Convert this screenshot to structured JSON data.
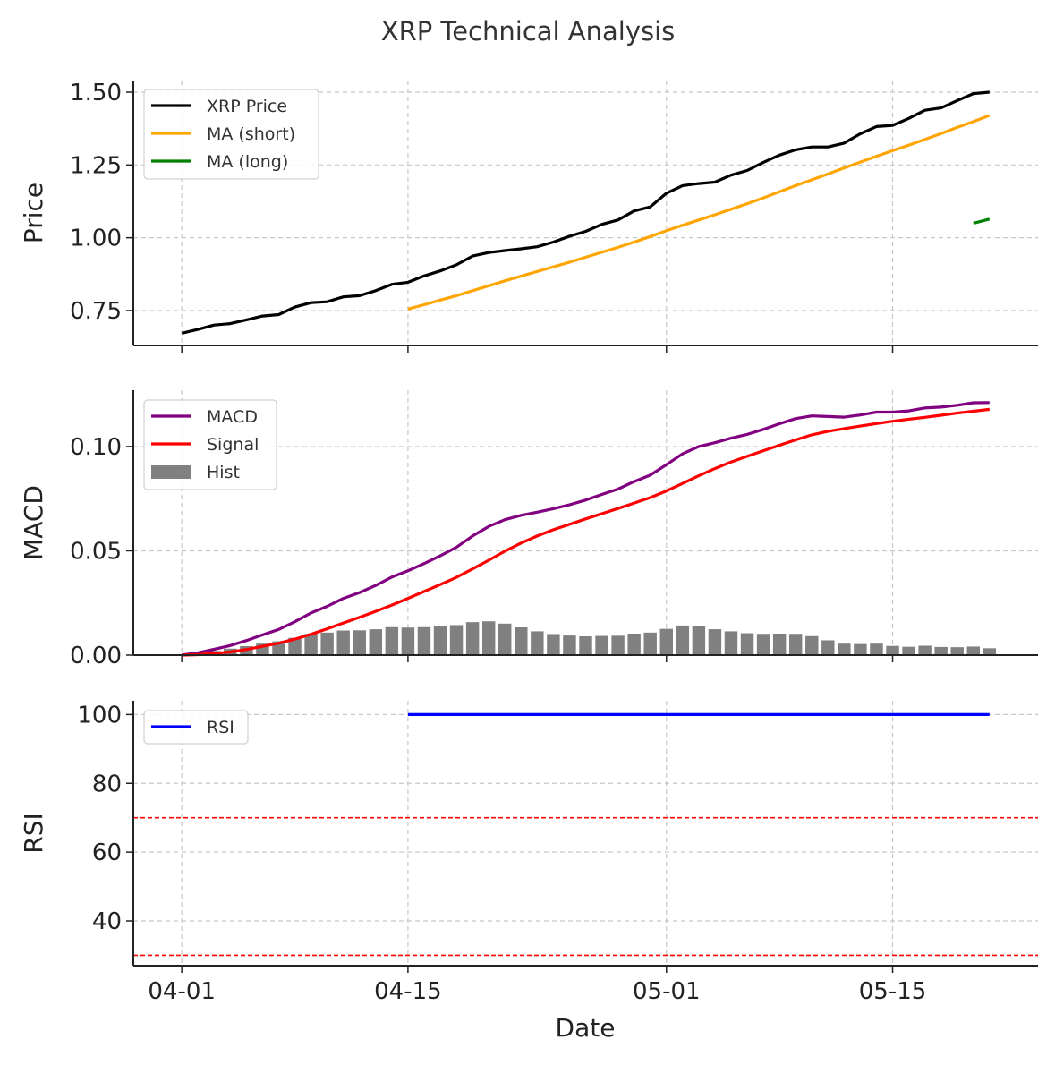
{
  "chart_data": {
    "type": "line",
    "title": "XRP Technical Analysis",
    "xlabel": "Date",
    "x_tick_labels": [
      "04-01",
      "04-15",
      "05-01",
      "05-15"
    ],
    "x_tick_index": [
      0,
      14,
      30,
      44
    ],
    "x_range_index": [
      -3,
      53
    ],
    "panels": [
      {
        "id": "price",
        "ylabel": "Price",
        "ylim": [
          0.63,
          1.54
        ],
        "yticks": [
          0.75,
          1.0,
          1.25,
          1.5
        ],
        "ytick_labels": [
          "0.75",
          "1.00",
          "1.25",
          "1.50"
        ],
        "legend": [
          "XRP Price",
          "MA (short)",
          "MA (long)"
        ],
        "series": [
          {
            "name": "XRP Price",
            "color": "#000000",
            "start": 0,
            "values": [
              0.672,
              0.685,
              0.7,
              0.705,
              0.718,
              0.731,
              0.736,
              0.762,
              0.777,
              0.78,
              0.797,
              0.801,
              0.818,
              0.84,
              0.847,
              0.869,
              0.886,
              0.907,
              0.937,
              0.949,
              0.956,
              0.962,
              0.969,
              0.985,
              1.005,
              1.022,
              1.046,
              1.061,
              1.092,
              1.106,
              1.153,
              1.179,
              1.186,
              1.191,
              1.215,
              1.231,
              1.259,
              1.284,
              1.302,
              1.312,
              1.312,
              1.325,
              1.357,
              1.382,
              1.386,
              1.41,
              1.438,
              1.446,
              1.471,
              1.495,
              1.5
            ]
          },
          {
            "name": "MA (short)",
            "color": "#FFA500",
            "start": 14,
            "values": [
              0.755,
              0.77,
              0.786,
              0.801,
              0.818,
              0.835,
              0.852,
              0.868,
              0.884,
              0.9,
              0.916,
              0.933,
              0.95,
              0.967,
              0.985,
              1.004,
              1.024,
              1.043,
              1.061,
              1.079,
              1.098,
              1.117,
              1.137,
              1.158,
              1.179,
              1.199,
              1.219,
              1.24,
              1.26,
              1.28,
              1.299,
              1.318,
              1.338,
              1.358,
              1.379,
              1.399,
              1.42
            ]
          },
          {
            "name": "MA (long)",
            "color": "#008000",
            "start": 49,
            "values": [
              1.05,
              1.064
            ]
          }
        ]
      },
      {
        "id": "macd",
        "ylabel": "MACD",
        "ylim": [
          0.0,
          0.127
        ],
        "yticks": [
          0.0,
          0.05,
          0.1
        ],
        "ytick_labels": [
          "0.00",
          "0.05",
          "0.10"
        ],
        "legend": [
          "MACD",
          "Signal",
          "Hist"
        ],
        "series": [
          {
            "name": "MACD",
            "color": "#800080",
            "start": 0,
            "values": [
              0.0001,
              0.0011,
              0.0028,
              0.0046,
              0.007,
              0.0097,
              0.0123,
              0.016,
              0.0202,
              0.0234,
              0.0272,
              0.03,
              0.0334,
              0.0374,
              0.0404,
              0.0439,
              0.0476,
              0.0517,
              0.0571,
              0.0617,
              0.0649,
              0.067,
              0.0685,
              0.0702,
              0.0721,
              0.0743,
              0.077,
              0.0796,
              0.0832,
              0.0863,
              0.0913,
              0.0965,
              0.1,
              0.1018,
              0.104,
              0.1058,
              0.1082,
              0.1109,
              0.1134,
              0.1147,
              0.1144,
              0.1141,
              0.1151,
              0.1165,
              0.1165,
              0.1171,
              0.1185,
              0.1189,
              0.1198,
              0.121,
              0.1211
            ]
          },
          {
            "name": "Signal",
            "color": "#FF0000",
            "start": 0,
            "values": [
              0.0,
              0.0002,
              0.0008,
              0.0015,
              0.0027,
              0.0042,
              0.0057,
              0.0077,
              0.01,
              0.0126,
              0.0154,
              0.0181,
              0.021,
              0.024,
              0.0272,
              0.0305,
              0.0338,
              0.0373,
              0.0413,
              0.0455,
              0.0498,
              0.0537,
              0.0571,
              0.0601,
              0.0627,
              0.0653,
              0.0678,
              0.0703,
              0.0729,
              0.0755,
              0.0787,
              0.0823,
              0.086,
              0.0894,
              0.0926,
              0.0953,
              0.098,
              0.1006,
              0.1032,
              0.1056,
              0.1073,
              0.1086,
              0.1098,
              0.111,
              0.1121,
              0.1131,
              0.114,
              0.115,
              0.116,
              0.1169,
              0.1178
            ]
          },
          {
            "name": "Hist",
            "color": "#808080",
            "start": 1,
            "kind": "bar",
            "values": [
              0.0009,
              0.002,
              0.0031,
              0.0043,
              0.0055,
              0.0066,
              0.0083,
              0.0102,
              0.0108,
              0.0118,
              0.0119,
              0.0124,
              0.0134,
              0.0132,
              0.0134,
              0.0138,
              0.0144,
              0.0158,
              0.0162,
              0.0151,
              0.0133,
              0.0114,
              0.0101,
              0.0094,
              0.009,
              0.0092,
              0.0093,
              0.0103,
              0.0108,
              0.0126,
              0.0142,
              0.014,
              0.0124,
              0.0114,
              0.0105,
              0.0102,
              0.0103,
              0.0102,
              0.0091,
              0.0071,
              0.0055,
              0.0053,
              0.0055,
              0.0044,
              0.004,
              0.0045,
              0.0039,
              0.0038,
              0.0041,
              0.0033
            ]
          }
        ]
      },
      {
        "id": "rsi",
        "ylabel": "RSI",
        "ylim": [
          27,
          104
        ],
        "yticks": [
          40,
          60,
          80,
          100
        ],
        "ytick_labels": [
          "40",
          "60",
          "80",
          "100"
        ],
        "legend": [
          "RSI"
        ],
        "hlines": [
          {
            "value": 70,
            "color": "#FF0000"
          },
          {
            "value": 30,
            "color": "#FF0000"
          }
        ],
        "series": [
          {
            "name": "RSI",
            "color": "#0000FF",
            "start": 14,
            "values": [
              100,
              100,
              100,
              100,
              100,
              100,
              100,
              100,
              100,
              100,
              100,
              100,
              100,
              100,
              100,
              100,
              100,
              100,
              100,
              100,
              100,
              100,
              100,
              100,
              100,
              100,
              100,
              100,
              100,
              100,
              100,
              100,
              100,
              100,
              100,
              100,
              100
            ]
          }
        ]
      }
    ]
  }
}
